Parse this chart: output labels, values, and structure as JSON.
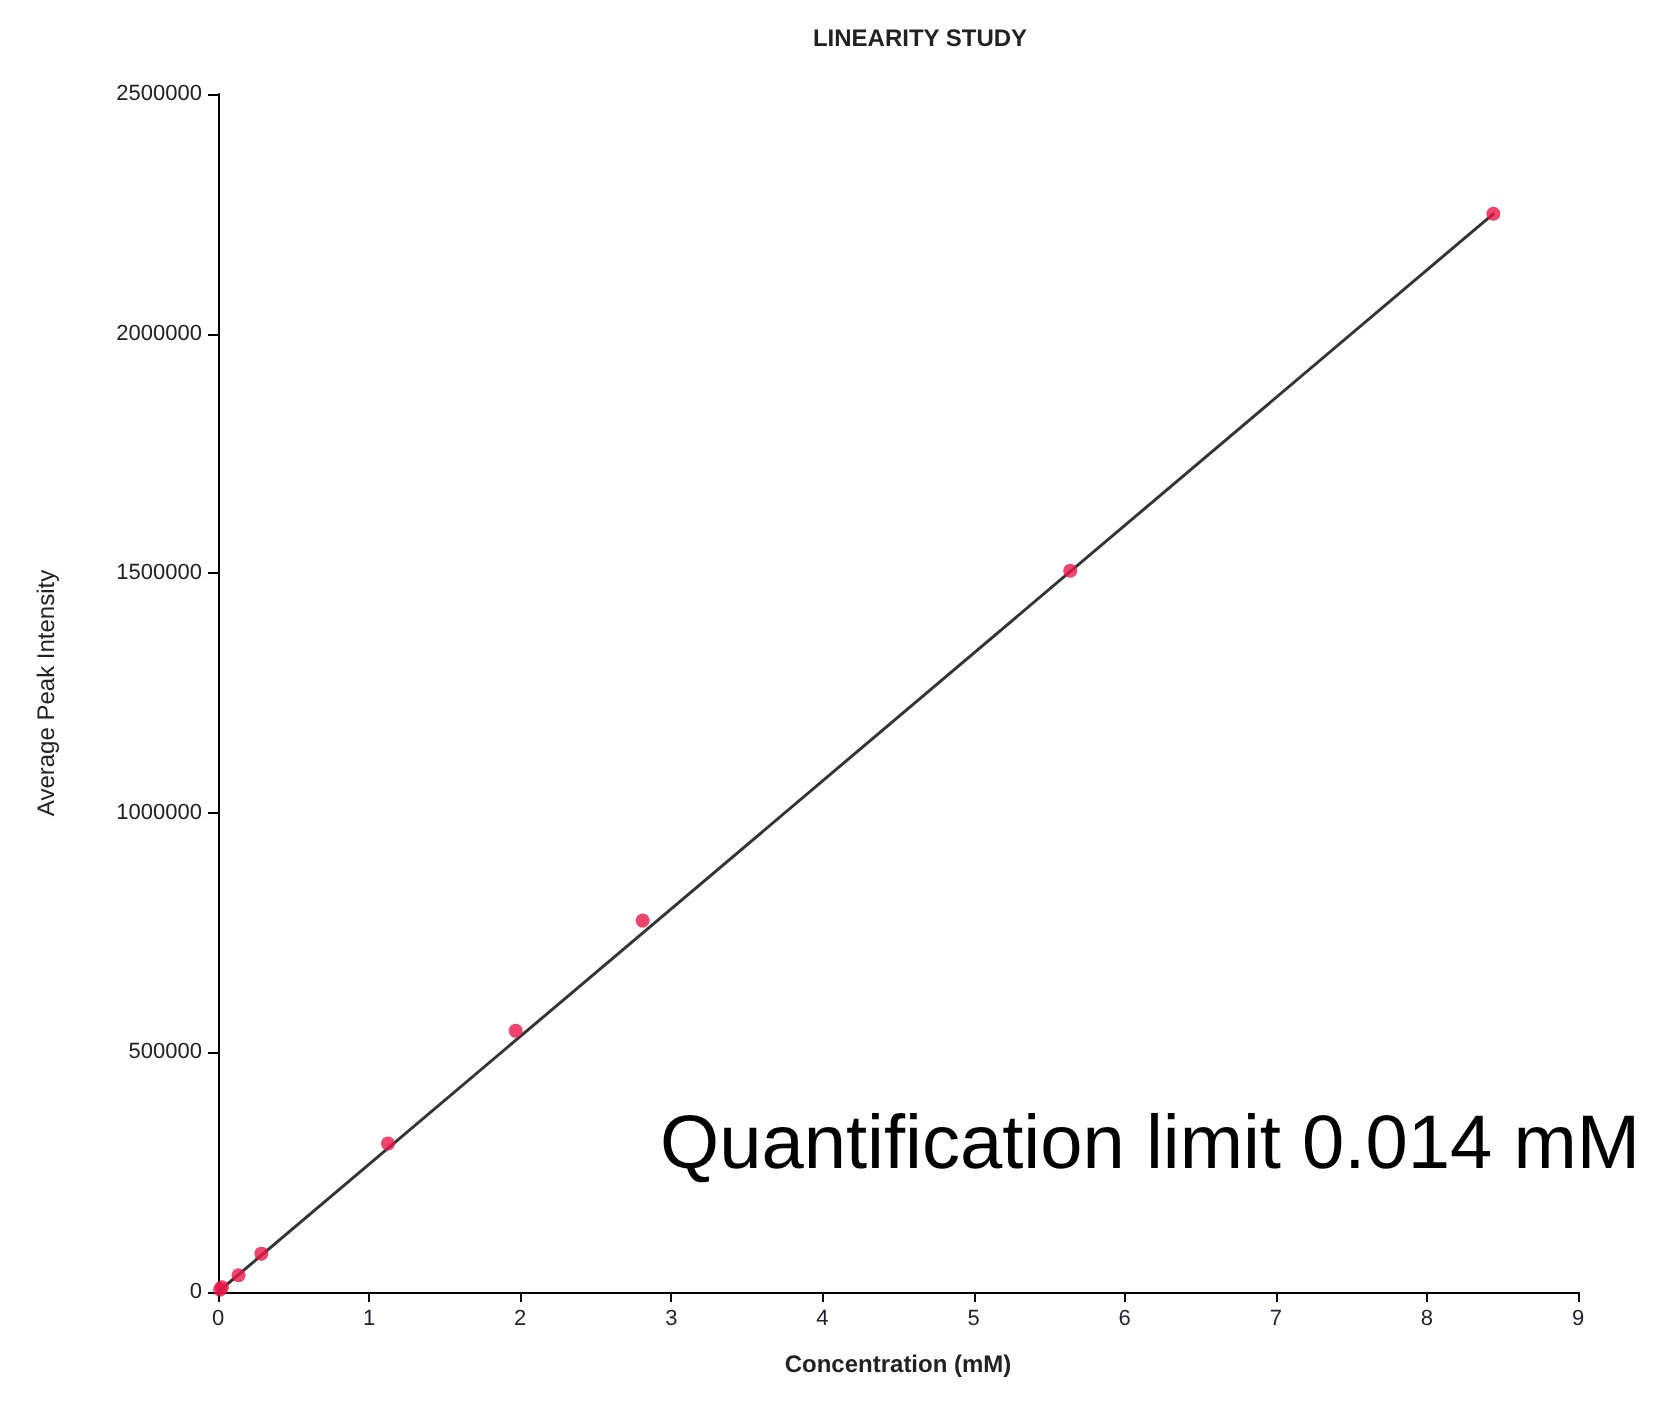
{
  "chart_data": {
    "type": "scatter",
    "title": "LINEARITY STUDY",
    "xlabel": "Concentration (mM)",
    "ylabel": "Average Peak Intensity",
    "annotations": [
      "Quantification limit 0.014 mM"
    ],
    "xlim": [
      0,
      9
    ],
    "xticks": [
      0,
      1,
      2,
      3,
      4,
      5,
      6,
      7,
      8,
      9
    ],
    "ylim": [
      0,
      2500000
    ],
    "yticks": [
      0,
      500000,
      1000000,
      1500000,
      2000000,
      2500000
    ],
    "grid": false,
    "marker": "circle",
    "series": [
      {
        "color": "#e8174a",
        "x": [
          0.014,
          0.026,
          0.136,
          0.287,
          1.125,
          1.97,
          2.81,
          5.64,
          8.44
        ],
        "values": [
          5000,
          10000,
          35000,
          80000,
          310000,
          545000,
          775000,
          1505000,
          2250000
        ]
      },
      {
        "type": "line",
        "color": "#333333",
        "marker": "none",
        "line_style": "solid",
        "x": [
          0,
          8.44
        ],
        "values": [
          0,
          2250000
        ]
      }
    ]
  }
}
